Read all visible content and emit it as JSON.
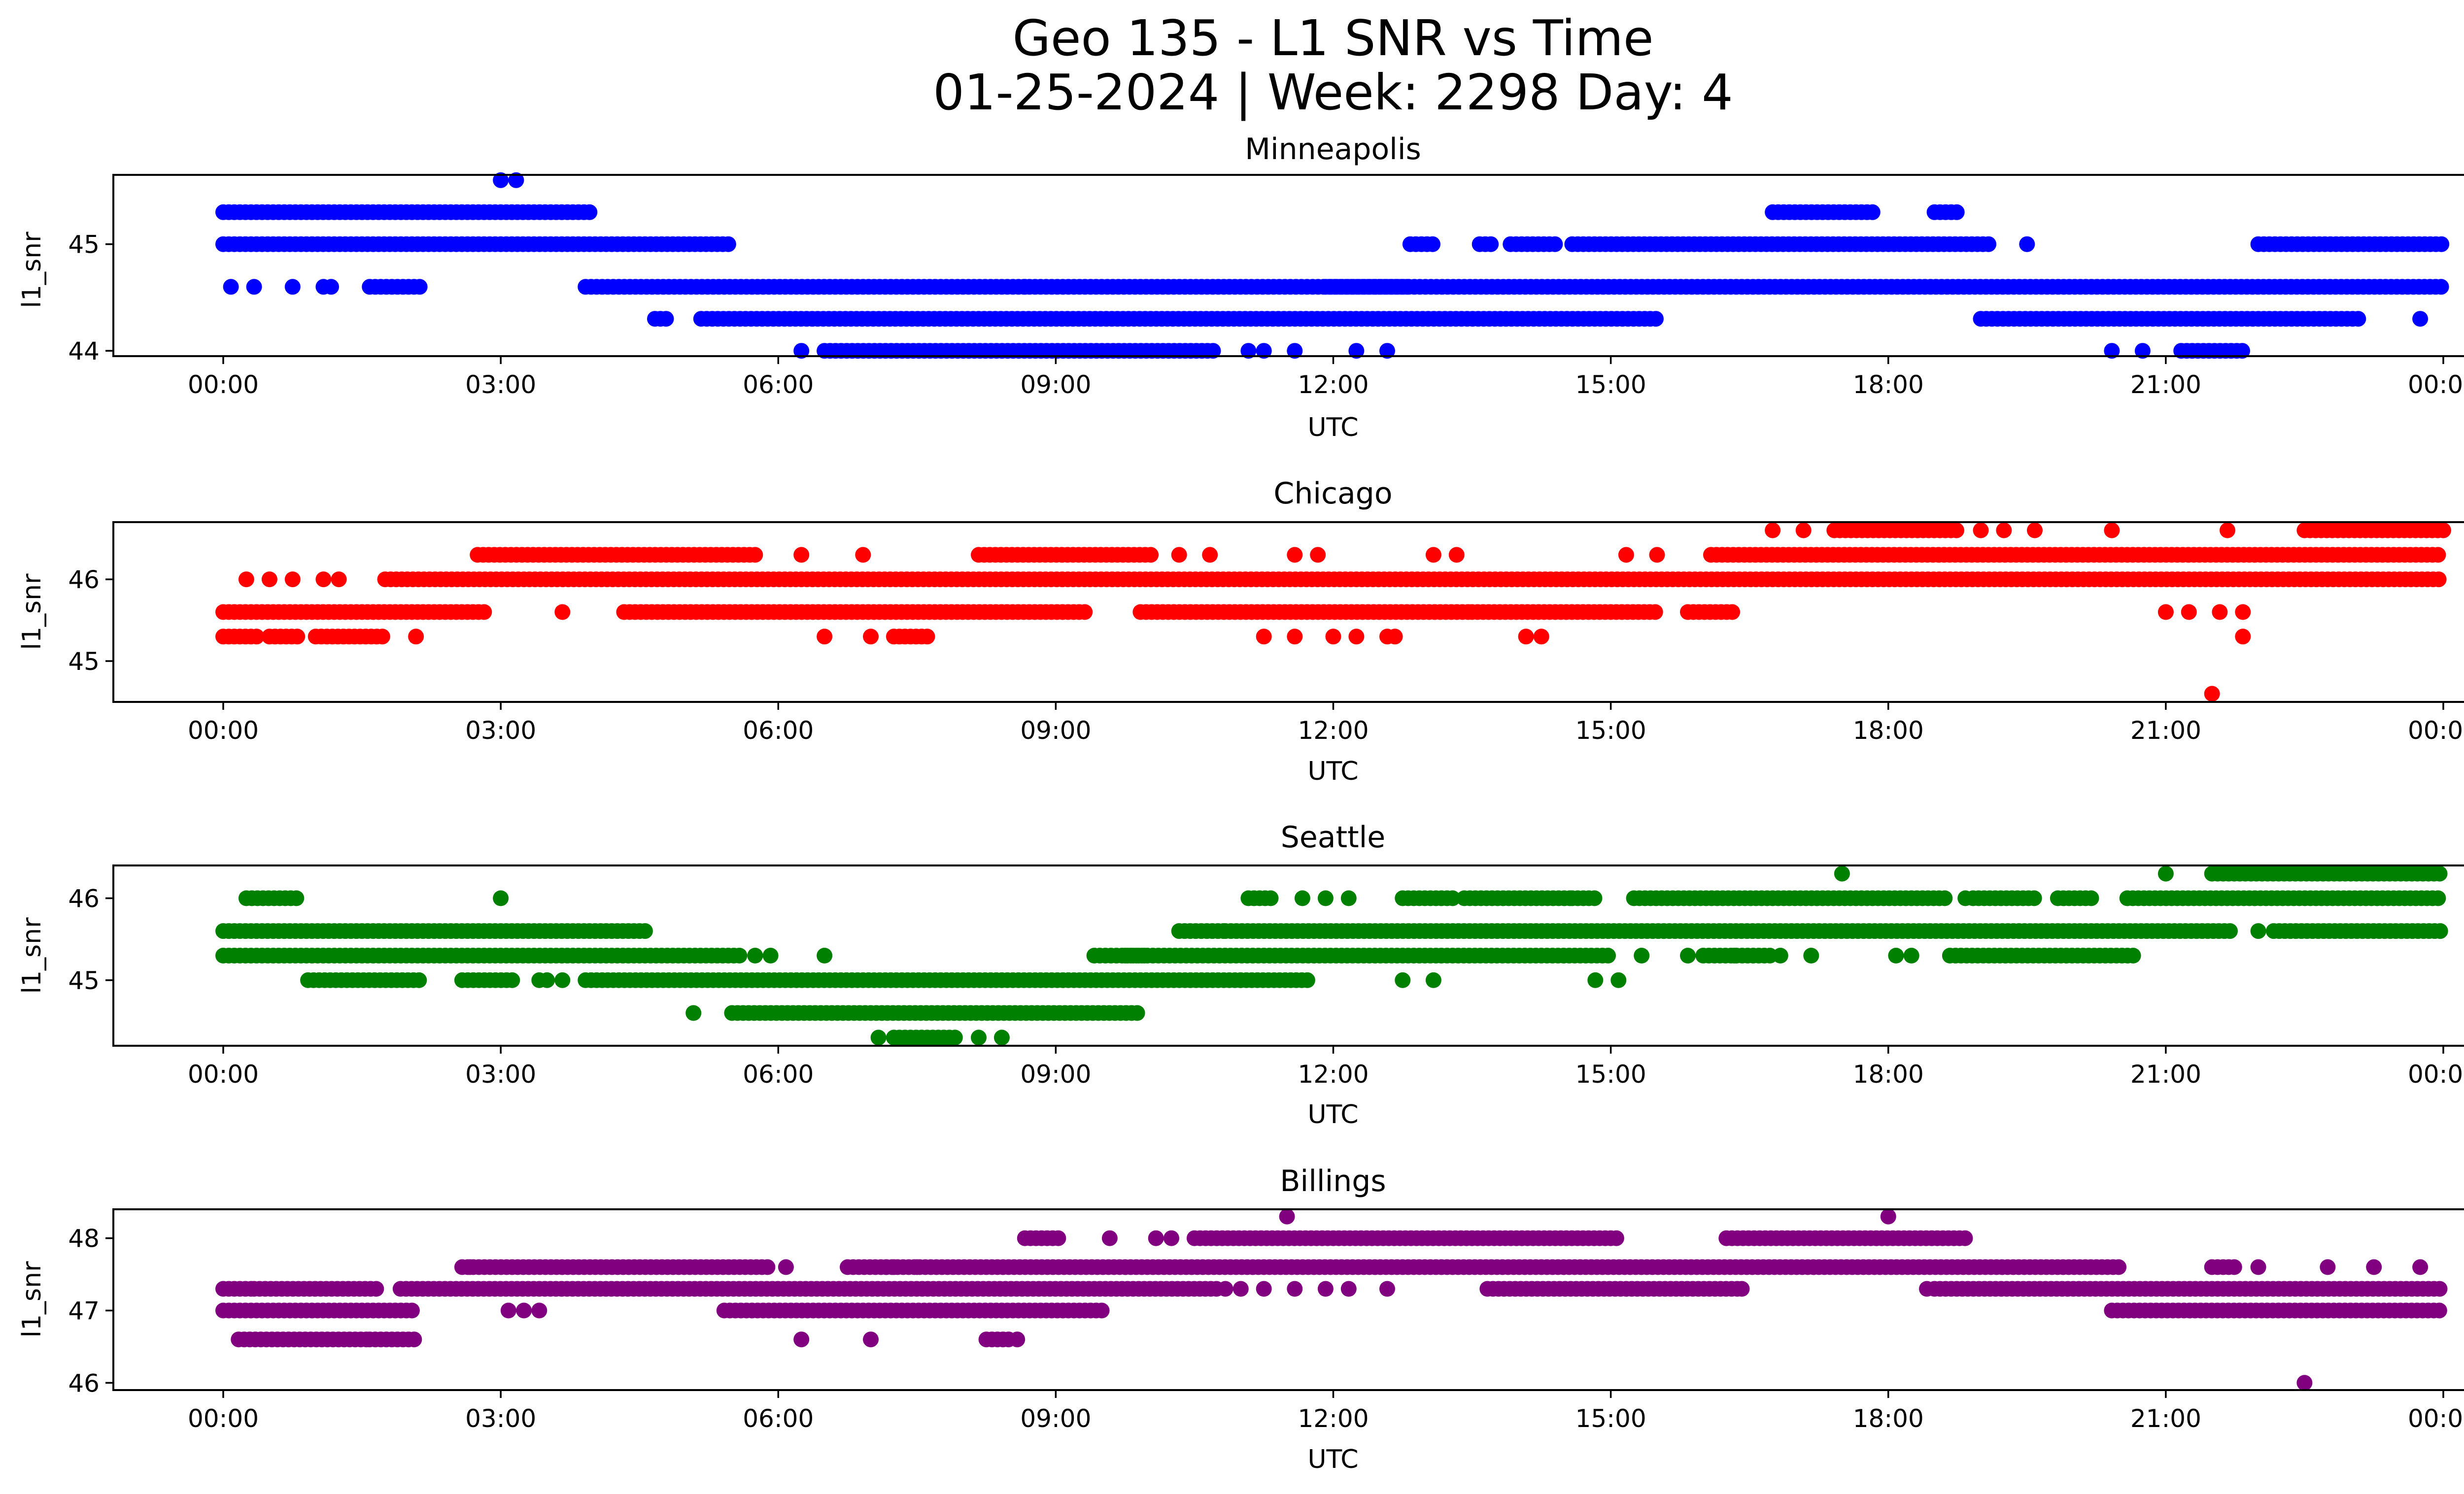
{
  "figure": {
    "title_line1": "Geo 135 - L1 SNR vs Time",
    "title_line2": "01-25-2024 | Week: 2298 Day: 4"
  },
  "chart_data": [
    {
      "type": "scatter",
      "title": "Minneapolis",
      "xlabel": "UTC",
      "ylabel": "l1_snr",
      "color": "#0000ff",
      "xlim": [
        "00:00",
        "24:00"
      ],
      "ylim": [
        43.95,
        45.65
      ],
      "xticks": [
        "00:00",
        "03:00",
        "06:00",
        "09:00",
        "12:00",
        "15:00",
        "18:00",
        "21:00",
        "00:00"
      ],
      "yticks": [
        {
          "v": 44,
          "label": "44"
        },
        {
          "v": 45,
          "label": "45"
        }
      ],
      "segments": [
        {
          "y": 45.3,
          "ranges": [
            [
              "00:00",
              "04:00"
            ],
            [
              "16:45",
              "17:50"
            ],
            [
              "18:30",
              "18:45"
            ]
          ]
        },
        {
          "y": 45.0,
          "ranges": [
            [
              "00:00",
              "05:30"
            ],
            [
              "12:50",
              "13:05"
            ],
            [
              "13:35",
              "13:45"
            ],
            [
              "13:55",
              "14:25"
            ],
            [
              "14:35",
              "19:05"
            ],
            [
              "22:00",
              "24:00"
            ]
          ],
          "points": [
            "19:30"
          ]
        },
        {
          "y": 44.6,
          "ranges": [
            [
              "03:55",
              "12:50"
            ],
            [
              "11:55",
              "24:00"
            ]
          ],
          "points": [
            "00:05",
            "00:20",
            "00:45",
            "01:05",
            "01:10"
          ]
        },
        {
          "y": 44.6,
          "ranges": [
            [
              "01:35",
              "02:10"
            ]
          ],
          "points": [
            "08:40"
          ]
        },
        {
          "y": 44.3,
          "ranges": [
            [
              "04:40",
              "04:50"
            ],
            [
              "05:10",
              "15:30"
            ],
            [
              "19:00",
              "23:05"
            ]
          ],
          "points": [
            "23:45"
          ]
        },
        {
          "y": 44.0,
          "ranges": [
            [
              "06:30",
              "10:45"
            ],
            [
              "21:10",
              "21:50"
            ]
          ],
          "points": [
            "06:15",
            "11:05",
            "11:15",
            "11:35",
            "12:15",
            "12:35",
            "20:25",
            "20:45"
          ]
        }
      ],
      "points_extra": [
        {
          "x": "03:00",
          "y": 45.6
        },
        {
          "x": "03:10",
          "y": 45.6
        }
      ]
    },
    {
      "type": "scatter",
      "title": "Chicago",
      "xlabel": "UTC",
      "ylabel": "l1_snr",
      "color": "#ff0000",
      "xlim": [
        "00:00",
        "24:00"
      ],
      "ylim": [
        44.5,
        46.7
      ],
      "xticks": [
        "00:00",
        "03:00",
        "06:00",
        "09:00",
        "12:00",
        "15:00",
        "18:00",
        "21:00",
        "00:00"
      ],
      "yticks": [
        {
          "v": 45,
          "label": "45"
        },
        {
          "v": 46,
          "label": "46"
        }
      ],
      "segments": [
        {
          "y": 46.6,
          "ranges": [
            [
              "17:25",
              "18:45"
            ],
            [
              "22:30",
              "24:00"
            ]
          ],
          "points": [
            "16:45",
            "17:05",
            "19:00",
            "19:15",
            "19:35",
            "20:25",
            "21:40"
          ]
        },
        {
          "y": 46.3,
          "ranges": [
            [
              "02:45",
              "05:45"
            ],
            [
              "08:10",
              "10:05"
            ],
            [
              "16:05",
              "24:00"
            ]
          ],
          "points": [
            "06:15",
            "06:55",
            "10:20",
            "10:40",
            "11:35",
            "11:50",
            "13:05",
            "13:20",
            "15:10",
            "15:30"
          ]
        },
        {
          "y": 46.0,
          "ranges": [
            [
              "01:45",
              "24:00"
            ]
          ],
          "points": [
            "00:15",
            "00:30",
            "00:45",
            "01:05",
            "01:15"
          ]
        },
        {
          "y": 45.6,
          "ranges": [
            [
              "00:00",
              "02:50"
            ],
            [
              "04:20",
              "09:20"
            ],
            [
              "09:55",
              "13:30"
            ],
            [
              "13:30",
              "15:30"
            ],
            [
              "15:50",
              "16:20"
            ]
          ],
          "points": [
            "03:40",
            "21:00",
            "21:15",
            "21:35",
            "21:50"
          ]
        },
        {
          "y": 45.3,
          "ranges": [
            [
              "00:00",
              "00:25"
            ],
            [
              "00:30",
              "00:50"
            ],
            [
              "01:00",
              "01:45"
            ],
            [
              "07:15",
              "07:40"
            ]
          ],
          "points": [
            "02:05",
            "06:30",
            "07:00",
            "11:15",
            "11:35",
            "12:00",
            "12:15",
            "12:35",
            "12:40",
            "14:05",
            "14:15",
            "21:50"
          ]
        },
        {
          "y": 44.6,
          "ranges": [],
          "points": [
            "21:30"
          ]
        }
      ]
    },
    {
      "type": "scatter",
      "title": "Seattle",
      "xlabel": "UTC",
      "ylabel": "l1_snr",
      "color": "#008000",
      "xlim": [
        "00:00",
        "24:00"
      ],
      "ylim": [
        44.2,
        46.4
      ],
      "xticks": [
        "00:00",
        "03:00",
        "06:00",
        "09:00",
        "12:00",
        "15:00",
        "18:00",
        "21:00",
        "00:00"
      ],
      "yticks": [
        {
          "v": 45,
          "label": "45"
        },
        {
          "v": 46,
          "label": "46"
        }
      ],
      "segments": [
        {
          "y": 46.3,
          "ranges": [
            [
              "21:30",
              "24:00"
            ]
          ],
          "points": [
            "17:30",
            "21:00"
          ]
        },
        {
          "y": 46.0,
          "ranges": [
            [
              "00:15",
              "00:50"
            ],
            [
              "11:05",
              "11:20"
            ],
            [
              "12:45",
              "13:20"
            ],
            [
              "13:25",
              "14:35"
            ],
            [
              "14:35",
              "14:50"
            ],
            [
              "15:15",
              "18:40"
            ],
            [
              "18:55",
              "19:35"
            ],
            [
              "19:50",
              "20:15"
            ],
            [
              "20:35",
              "24:00"
            ]
          ],
          "points": [
            "03:00",
            "11:40",
            "11:55",
            "12:10",
            "18:50"
          ]
        },
        {
          "y": 45.6,
          "ranges": [
            [
              "00:00",
              "04:35"
            ],
            [
              "10:20",
              "10:50"
            ],
            [
              "10:50",
              "21:45"
            ],
            [
              "22:10",
              "24:00"
            ]
          ],
          "points": [
            "22:00"
          ]
        },
        {
          "y": 45.3,
          "ranges": [
            [
              "00:00",
              "05:35"
            ],
            [
              "09:25",
              "10:00"
            ],
            [
              "09:45",
              "15:00"
            ],
            [
              "16:00",
              "16:45"
            ],
            [
              "18:40",
              "20:40"
            ]
          ],
          "points": [
            "05:45",
            "05:55",
            "06:30",
            "15:20",
            "15:50",
            "16:20",
            "16:50",
            "17:10",
            "18:05",
            "18:15"
          ]
        },
        {
          "y": 45.0,
          "ranges": [
            [
              "00:55",
              "02:10"
            ],
            [
              "02:35",
              "03:10"
            ],
            [
              "03:55",
              "11:00"
            ],
            [
              "11:00",
              "11:45"
            ]
          ],
          "points": [
            "03:25",
            "03:30",
            "03:40",
            "12:45",
            "13:05",
            "14:50",
            "15:05"
          ]
        },
        {
          "y": 44.6,
          "ranges": [
            [
              "05:30",
              "09:55"
            ]
          ],
          "points": [
            "05:05"
          ]
        },
        {
          "y": 44.3,
          "ranges": [
            [
              "07:15",
              "07:55"
            ]
          ],
          "points": [
            "07:05",
            "08:10",
            "08:25"
          ]
        }
      ]
    },
    {
      "type": "scatter",
      "title": "Billings",
      "xlabel": "UTC",
      "ylabel": "l1_snr",
      "color": "#800080",
      "xlim": [
        "00:00",
        "24:00"
      ],
      "ylim": [
        45.9,
        48.4
      ],
      "xticks": [
        "00:00",
        "03:00",
        "06:00",
        "09:00",
        "12:00",
        "15:00",
        "18:00",
        "21:00",
        "00:00"
      ],
      "yticks": [
        {
          "v": 46,
          "label": "46"
        },
        {
          "v": 47,
          "label": "47"
        },
        {
          "v": 48,
          "label": "48"
        }
      ],
      "segments": [
        {
          "y": 48.3,
          "ranges": [],
          "points": [
            "11:30",
            "18:00"
          ]
        },
        {
          "y": 48.0,
          "ranges": [
            [
              "08:40",
              "09:05"
            ],
            [
              "10:30",
              "15:05"
            ],
            [
              "16:15",
              "18:50"
            ]
          ],
          "points": [
            "09:35",
            "10:05",
            "10:15"
          ]
        },
        {
          "y": 47.6,
          "ranges": [
            [
              "02:35",
              "05:55"
            ],
            [
              "06:45",
              "20:30"
            ],
            [
              "21:30",
              "21:45"
            ]
          ],
          "points": [
            "02:40",
            "06:05",
            "07:10",
            "07:15",
            "07:30",
            "22:00",
            "22:45",
            "23:15",
            "23:45"
          ]
        },
        {
          "y": 47.3,
          "ranges": [
            [
              "00:00",
              "00:20"
            ],
            [
              "00:20",
              "01:40"
            ],
            [
              "01:55",
              "10:45"
            ],
            [
              "13:40",
              "16:25"
            ],
            [
              "18:30",
              "24:00"
            ]
          ],
          "points": [
            "10:50",
            "11:00",
            "11:15",
            "11:35",
            "11:55",
            "12:10",
            "12:35",
            "16:25",
            "18:25"
          ]
        },
        {
          "y": 47.0,
          "ranges": [
            [
              "00:00",
              "02:05"
            ],
            [
              "05:25",
              "09:30"
            ],
            [
              "20:25",
              "24:00"
            ]
          ],
          "points": [
            "03:05",
            "03:15",
            "03:25"
          ]
        },
        {
          "y": 46.6,
          "ranges": [
            [
              "00:10",
              "01:35"
            ],
            [
              "01:35",
              "02:05"
            ],
            [
              "08:15",
              "08:30"
            ]
          ],
          "points": [
            "06:15",
            "07:00",
            "08:35"
          ]
        },
        {
          "y": 46.0,
          "ranges": [],
          "points": [
            "22:30"
          ]
        }
      ]
    }
  ]
}
